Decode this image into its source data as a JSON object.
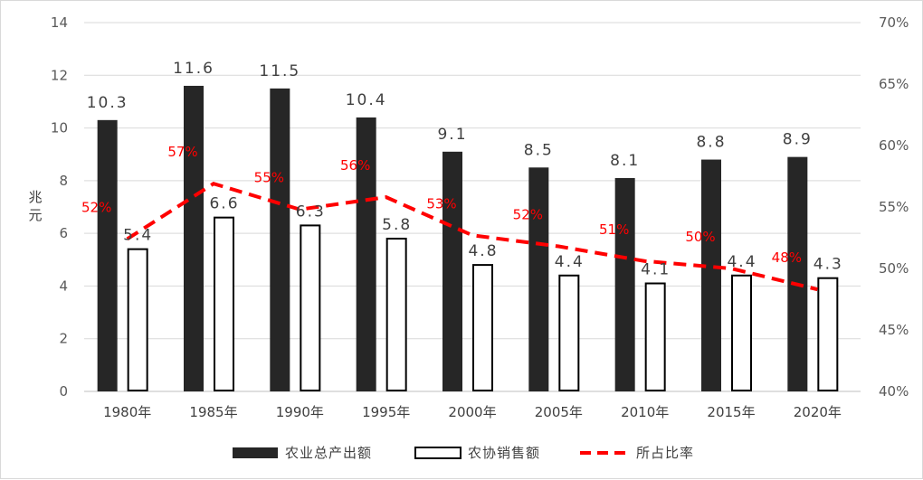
{
  "chart_data": {
    "type": "bar",
    "categories": [
      "1980年",
      "1985年",
      "1990年",
      "1995年",
      "2000年",
      "2005年",
      "2010年",
      "2015年",
      "2020年"
    ],
    "series": [
      {
        "name": "农业总产出额",
        "kind": "bar",
        "axis": "left",
        "color": "#262626",
        "values": [
          10.3,
          11.6,
          11.5,
          10.4,
          9.1,
          8.5,
          8.1,
          8.8,
          8.9
        ],
        "labels": [
          "10.3",
          "11.6",
          "11.5",
          "10.4",
          "9.1",
          "8.5",
          "8.1",
          "8.8",
          "8.9"
        ]
      },
      {
        "name": "农协销售额",
        "kind": "bar",
        "axis": "left",
        "color": "#ffffff",
        "stroke": "#000000",
        "values": [
          5.4,
          6.6,
          6.3,
          5.8,
          4.8,
          4.4,
          4.1,
          4.4,
          4.3
        ],
        "labels": [
          "5.4",
          "6.6",
          "6.3",
          "5.8",
          "4.8",
          "4.4",
          "4.1",
          "4.4",
          "4.3"
        ]
      },
      {
        "name": "所占比率",
        "kind": "line",
        "axis": "right",
        "style": "dashed",
        "color": "#ff0000",
        "values": [
          52.4,
          56.9,
          54.8,
          55.8,
          52.7,
          51.8,
          50.6,
          50.0,
          48.3
        ],
        "labels": [
          "52%",
          "57%",
          "55%",
          "56%",
          "53%",
          "52%",
          "51%",
          "50%",
          "48%"
        ]
      }
    ],
    "ylabel": "兆元",
    "ylim": [
      0,
      14
    ],
    "y_ticks": [
      "0",
      "2",
      "4",
      "6",
      "8",
      "10",
      "12",
      "14"
    ],
    "y2lim": [
      40,
      70
    ],
    "y2_ticks": [
      "40%",
      "45%",
      "50%",
      "55%",
      "60%",
      "65%",
      "70%"
    ],
    "grid": true,
    "legend_position": "bottom"
  }
}
